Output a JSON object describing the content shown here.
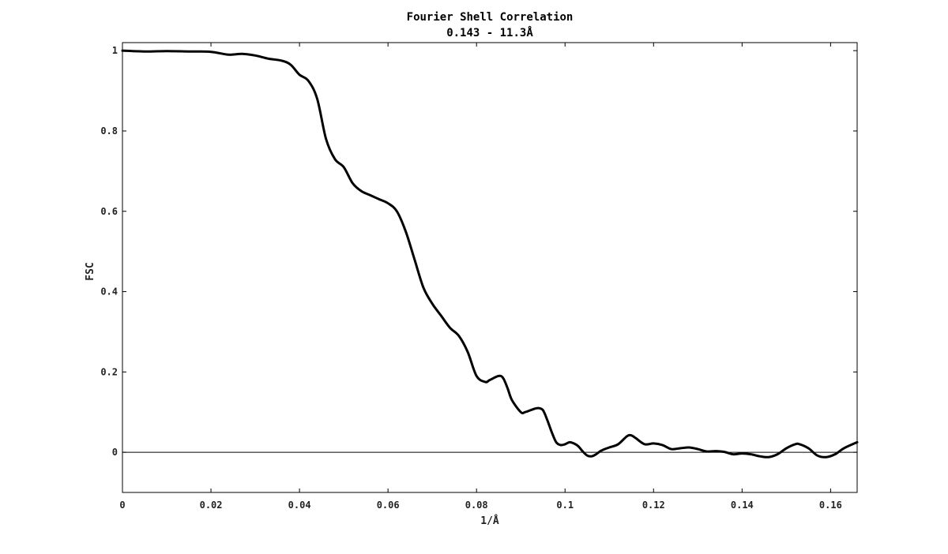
{
  "chart_data": {
    "type": "line",
    "title": "Fourier Shell Correlation",
    "subtitle": "0.143 - 11.3Å",
    "xlabel": "1/Å",
    "ylabel": "FSC",
    "xlim": [
      0,
      0.166
    ],
    "ylim": [
      -0.1,
      1.02
    ],
    "xticks": [
      0,
      0.02,
      0.04,
      0.06,
      0.08,
      0.1,
      0.12,
      0.14,
      0.16
    ],
    "xtick_labels": [
      "0",
      "0.02",
      "0.04",
      "0.06",
      "0.08",
      "0.1",
      "0.12",
      "0.14",
      "0.16"
    ],
    "yticks": [
      0,
      0.2,
      0.4,
      0.6,
      0.8,
      1
    ],
    "ytick_labels": [
      "0",
      "0.2",
      "0.4",
      "0.6",
      "0.8",
      "1"
    ],
    "grid": false,
    "reference_line_y": 0,
    "line_color": "#000000",
    "series": [
      {
        "x": [
          0,
          0.005,
          0.01,
          0.015,
          0.02,
          0.024,
          0.027,
          0.03,
          0.033,
          0.036,
          0.038,
          0.04,
          0.042,
          0.044,
          0.046,
          0.048,
          0.05,
          0.052,
          0.054,
          0.056,
          0.058,
          0.06,
          0.062,
          0.064,
          0.066,
          0.068,
          0.07,
          0.072,
          0.074,
          0.076,
          0.078,
          0.08,
          0.082,
          0.083,
          0.085,
          0.086,
          0.087,
          0.088,
          0.09,
          0.091,
          0.093,
          0.094,
          0.095,
          0.096,
          0.097,
          0.098,
          0.099,
          0.1,
          0.101,
          0.102,
          0.103,
          0.104,
          0.105,
          0.106,
          0.107,
          0.108,
          0.109,
          0.11,
          0.112,
          0.114,
          0.115,
          0.116,
          0.118,
          0.12,
          0.122,
          0.124,
          0.126,
          0.128,
          0.13,
          0.132,
          0.134,
          0.136,
          0.138,
          0.14,
          0.142,
          0.144,
          0.146,
          0.148,
          0.15,
          0.152,
          0.153,
          0.155,
          0.157,
          0.159,
          0.161,
          0.163,
          0.166
        ],
        "y": [
          1.0,
          0.998,
          0.999,
          0.998,
          0.997,
          0.99,
          0.992,
          0.988,
          0.98,
          0.975,
          0.965,
          0.94,
          0.925,
          0.88,
          0.78,
          0.73,
          0.71,
          0.67,
          0.65,
          0.64,
          0.63,
          0.62,
          0.6,
          0.55,
          0.48,
          0.41,
          0.37,
          0.34,
          0.31,
          0.29,
          0.25,
          0.19,
          0.175,
          0.18,
          0.19,
          0.185,
          0.16,
          0.13,
          0.1,
          0.1,
          0.108,
          0.11,
          0.105,
          0.08,
          0.05,
          0.025,
          0.018,
          0.02,
          0.025,
          0.022,
          0.015,
          0.002,
          -0.008,
          -0.01,
          -0.005,
          0.003,
          0.008,
          0.012,
          0.02,
          0.04,
          0.042,
          0.035,
          0.02,
          0.022,
          0.018,
          0.008,
          0.01,
          0.012,
          0.008,
          0.002,
          0.003,
          0.001,
          -0.005,
          -0.003,
          -0.005,
          -0.01,
          -0.012,
          -0.005,
          0.01,
          0.02,
          0.02,
          0.01,
          -0.008,
          -0.012,
          -0.005,
          0.01,
          0.025
        ]
      }
    ]
  }
}
